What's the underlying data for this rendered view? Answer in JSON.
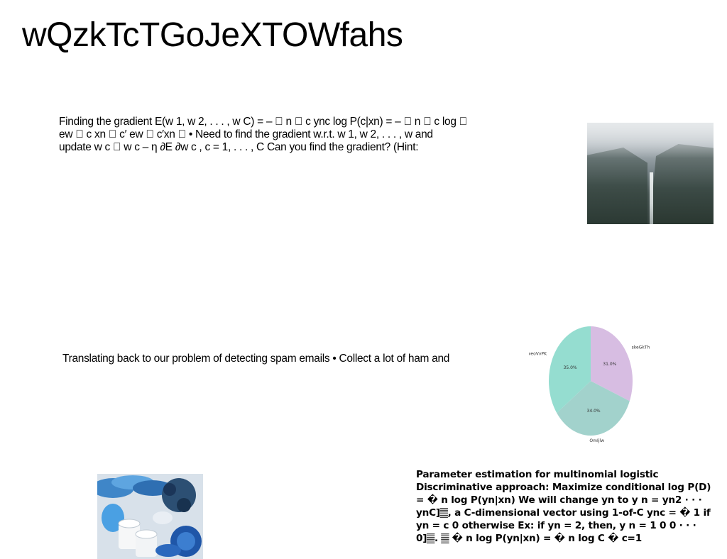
{
  "title": "wQzkTcTGoJeXTOWfahs",
  "paragraphs": {
    "p1": "Finding the gradient E(w 1, w 2, . . . , w C) = – \u0000 n \u0000 c ync log P(c|xn) = – \u0000 n \u0000 c log \u0000 ew \u0000 c xn \u0000 c′ ew \u0000 c′xn \u0000 • Need to find the gradient w.r.t. w 1, w 2, . . . , w and update w c \u0000 w c – η ∂E ∂w c , c = 1, . . . , C Can you find the gradient? (Hint:",
    "p2": "Translating back to our problem of detecting spam emails • Collect a lot of ham and",
    "p3": "Parameter estimation for multinomial logistic Discriminative approach: Maximize conditional log P(D) = � n log P(yn|xn) We will change yn to y n = yn2 · · · ynC]𝄛, a C-dimensional vector using 1-of-C ync = � 1 if yn = c 0 otherwise Ex: if yn = 2, then, y n = 1 0 0 · · · 0]𝄛. 𝄛 � n log P(yn|xn) = � n log C � c=1"
  },
  "images": {
    "waterfall": "misty waterfall canyon photo",
    "food": "blue foods and milk cups photo"
  },
  "chart_data": {
    "type": "pie",
    "series": [
      {
        "name": "skeGkTh",
        "value": 31.0,
        "label": "31.0%",
        "color": "#d7bde2"
      },
      {
        "name": "OmIjlw",
        "value": 34.0,
        "label": "34.0%",
        "color": "#a2d2cc"
      },
      {
        "name": "weoVvPK",
        "value": 35.0,
        "label": "35.0%",
        "color": "#95ddd0"
      }
    ],
    "start_angle_deg": 90,
    "direction": "clockwise"
  }
}
